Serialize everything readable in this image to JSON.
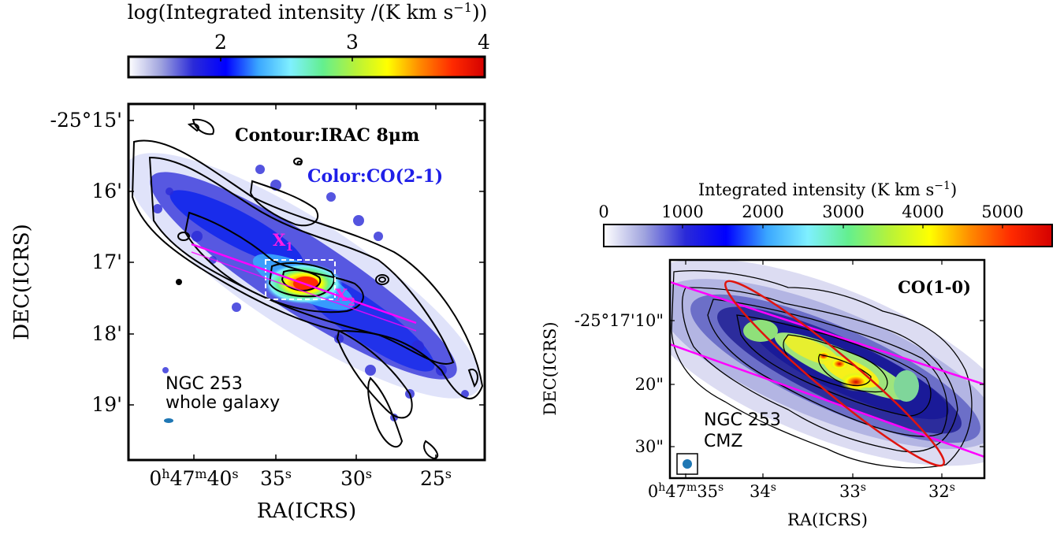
{
  "colors": {
    "colormap": [
      "#ffffff",
      "#9fa3de",
      "#2a2ad8",
      "#0000ff",
      "#3aa6ff",
      "#7ff0ff",
      "#63ef8f",
      "#b6f23a",
      "#ffff00",
      "#ff8a00",
      "#ff2a00",
      "#d40000"
    ],
    "contour_black": "#000000",
    "cut_line": "#ff00ff",
    "ellipse": "#e0140e",
    "beam": "#1f77b4",
    "box_white": "#ffffff"
  },
  "left": {
    "colorbar_label": "log(Integrated intensity /(K km s",
    "colorbar_label_sup": "−1",
    "colorbar_label_end": "))",
    "colorbar_ticks": [
      "2",
      "3",
      "4"
    ],
    "ylabel": "DEC(ICRS)",
    "xlabel": "RA(ICRS)",
    "yticks": [
      "-25°15'",
      "16'",
      "17'",
      "18'",
      "19'"
    ],
    "xtick_first": {
      "h": "0",
      "hsup": "h",
      "m": "47",
      "msup": "m",
      "s": "40",
      "ssup": "s"
    },
    "xticks": [
      {
        "v": "35",
        "sup": "s"
      },
      {
        "v": "30",
        "sup": "s"
      },
      {
        "v": "25",
        "sup": "s"
      }
    ],
    "annot_contour": "Contour:IRAC 8μm",
    "annot_color": "Color:CO(2-1)",
    "annot_name_1": "NGC 253",
    "annot_name_2": "whole galaxy",
    "marker_x1": "X",
    "marker_x1_sub": "1",
    "marker_x2": "X",
    "marker_x2_sub": "2"
  },
  "right": {
    "colorbar_label": "Integrated intensity (K km s",
    "colorbar_label_sup": "−1",
    "colorbar_label_end": ")",
    "colorbar_ticks": [
      "0",
      "1000",
      "2000",
      "3000",
      "4000",
      "5000"
    ],
    "ylabel": "DEC(ICRS)",
    "xlabel": "RA(ICRS)",
    "yticks": [
      "-25°17'10\"",
      "20\"",
      "30\""
    ],
    "xtick_first": {
      "h": "0",
      "hsup": "h",
      "m": "47",
      "msup": "m",
      "s": "35",
      "ssup": "s"
    },
    "xticks": [
      {
        "v": "34",
        "sup": "s"
      },
      {
        "v": "33",
        "sup": "s"
      },
      {
        "v": "32",
        "sup": "s"
      }
    ],
    "annot_line": "CO(1-0)",
    "annot_name_1": "NGC 253",
    "annot_name_2": "CMZ"
  },
  "chart_data": [
    {
      "type": "heatmap",
      "title": "",
      "colorbar_label": "log(Integrated intensity /(K km s−1))",
      "colorbar_range": [
        1,
        4
      ],
      "colorbar_ticks": [
        2,
        3,
        4
      ],
      "xlabel": "RA(ICRS)",
      "ylabel": "DEC(ICRS)",
      "xticks": [
        "0h47m40s",
        "35s",
        "30s",
        "25s"
      ],
      "yticks": [
        "-25°15'",
        "16'",
        "17'",
        "18'",
        "19'"
      ],
      "annotations": [
        "Contour:IRAC 8μm",
        "Color:CO(2-1)",
        "NGC 253 whole galaxy",
        "X1",
        "X2"
      ]
    },
    {
      "type": "heatmap",
      "title": "",
      "colorbar_label": "Integrated intensity (K km s−1)",
      "colorbar_range": [
        0,
        5600
      ],
      "colorbar_ticks": [
        0,
        1000,
        2000,
        3000,
        4000,
        5000
      ],
      "xlabel": "RA(ICRS)",
      "ylabel": "DEC(ICRS)",
      "xticks": [
        "0h47m35s",
        "34s",
        "33s",
        "32s"
      ],
      "yticks": [
        "-25°17'10\"",
        "20\"",
        "30\""
      ],
      "annotations": [
        "CO(1-0)",
        "NGC 253 CMZ"
      ]
    }
  ]
}
